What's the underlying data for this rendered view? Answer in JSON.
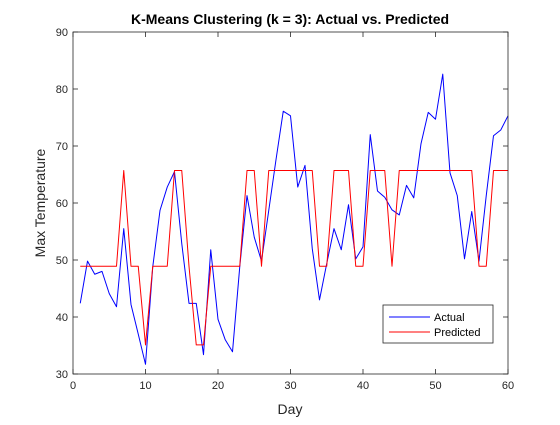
{
  "chart_data": {
    "type": "line",
    "title": "K-Means Clustering (k = 3): Actual vs. Predicted",
    "xlabel": "Day",
    "ylabel": "Max Temperature",
    "xlim": [
      0,
      60
    ],
    "ylim": [
      30,
      90
    ],
    "xticks": [
      0,
      10,
      20,
      30,
      40,
      50,
      60
    ],
    "yticks": [
      30,
      40,
      50,
      60,
      70,
      80,
      90
    ],
    "grid": false,
    "legend_position": "bottom-right",
    "series": [
      {
        "name": "Actual",
        "color": "#0000ff",
        "x": [
          1,
          2,
          3,
          4,
          5,
          6,
          7,
          8,
          9,
          10,
          11,
          12,
          13,
          14,
          15,
          16,
          17,
          18,
          19,
          20,
          21,
          22,
          23,
          24,
          25,
          26,
          27,
          28,
          29,
          30,
          31,
          32,
          33,
          34,
          35,
          36,
          37,
          38,
          39,
          40,
          41,
          42,
          43,
          44,
          45,
          46,
          47,
          48,
          49,
          50,
          51,
          52,
          53,
          54,
          55,
          56,
          57,
          58,
          59,
          60
        ],
        "y": [
          42.4,
          49.8,
          47.5,
          48.0,
          44.1,
          41.8,
          55.5,
          42.2,
          37.0,
          31.7,
          48.8,
          58.7,
          62.8,
          65.5,
          52.9,
          42.4,
          42.4,
          33.4,
          51.8,
          39.6,
          36.0,
          33.9,
          48.8,
          61.3,
          54.0,
          49.8,
          58.7,
          67.6,
          76.1,
          75.3,
          62.8,
          66.6,
          52.0,
          43.0,
          49.4,
          55.5,
          51.8,
          59.7,
          50.2,
          52.3,
          72.0,
          62.1,
          61.0,
          58.8,
          57.9,
          63.1,
          60.9,
          70.4,
          75.9,
          74.7,
          82.6,
          65.3,
          61.3,
          50.2,
          58.5,
          49.8,
          61.3,
          71.8,
          72.8,
          75.3
        ]
      },
      {
        "name": "Predicted",
        "color": "#ff0000",
        "x": [
          1,
          2,
          3,
          4,
          5,
          6,
          7,
          8,
          9,
          10,
          11,
          12,
          13,
          14,
          15,
          16,
          17,
          18,
          19,
          20,
          21,
          22,
          23,
          24,
          25,
          26,
          27,
          28,
          29,
          30,
          31,
          32,
          33,
          34,
          35,
          36,
          37,
          38,
          39,
          40,
          41,
          42,
          43,
          44,
          45,
          46,
          47,
          48,
          49,
          50,
          51,
          52,
          53,
          54,
          55,
          56,
          57,
          58,
          59,
          60
        ],
        "y": [
          48.9,
          48.9,
          48.9,
          48.9,
          48.9,
          48.9,
          65.7,
          48.9,
          48.9,
          35.1,
          48.9,
          48.9,
          48.9,
          65.7,
          65.7,
          48.9,
          35.1,
          35.1,
          48.9,
          48.9,
          48.9,
          48.9,
          48.9,
          65.7,
          65.7,
          48.9,
          65.7,
          65.7,
          65.7,
          65.7,
          65.7,
          65.7,
          65.7,
          48.9,
          48.9,
          65.7,
          65.7,
          65.7,
          48.9,
          48.9,
          65.7,
          65.7,
          65.7,
          48.9,
          65.7,
          65.7,
          65.7,
          65.7,
          65.7,
          65.7,
          65.7,
          65.7,
          65.7,
          65.7,
          65.7,
          48.9,
          48.9,
          65.7,
          65.7,
          65.7
        ]
      }
    ]
  }
}
